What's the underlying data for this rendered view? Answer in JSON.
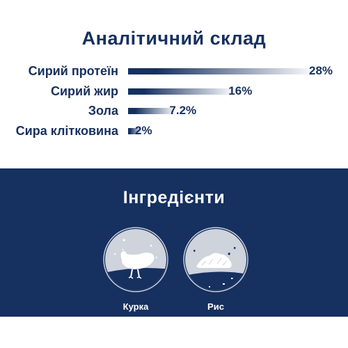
{
  "analysis": {
    "title": "Аналітичний склад",
    "items": [
      {
        "label": "Сирий протеїн",
        "value": "28%",
        "percent": 28
      },
      {
        "label": "Сирий жир",
        "value": "16%",
        "percent": 16
      },
      {
        "label": "Зола",
        "value": "7.2%",
        "percent": 7.2
      },
      {
        "label": "Сира клітковина",
        "value": "2%",
        "percent": 2
      }
    ]
  },
  "ingredients": {
    "title": "Інгредієнти",
    "items": [
      {
        "name": "Курка",
        "icon": "chicken-icon"
      },
      {
        "name": "Рис",
        "icon": "rice-icon"
      }
    ]
  },
  "colors": {
    "navy": "#16305f",
    "grey": "#cfd3dc",
    "white": "#ffffff"
  }
}
